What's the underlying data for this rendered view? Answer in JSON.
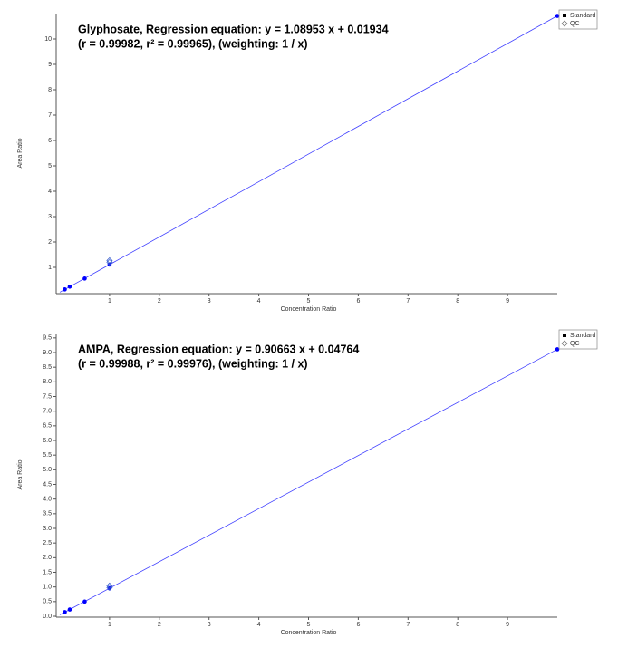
{
  "chart_data": [
    {
      "type": "scatter",
      "title": "Glyphosate, Regression equation: y = 1.08953 x + 0.01934",
      "subtitle": "(r = 0.99982, r² = 0.99965), (weighting: 1 / x)",
      "x_label": "Concentration Ratio",
      "y_label": "Area Ratio",
      "xlim": [
        0,
        10
      ],
      "ylim": [
        0,
        11
      ],
      "xticks": [
        1,
        2,
        3,
        4,
        5,
        6,
        7,
        8,
        9
      ],
      "yticks": [
        1,
        2,
        3,
        4,
        5,
        6,
        7,
        8,
        9,
        10
      ],
      "series": [
        {
          "name": "Standard",
          "color": "#0000ff",
          "x": [
            0.1,
            0.2,
            0.5,
            1,
            10
          ],
          "y": [
            0.13,
            0.24,
            0.56,
            1.11,
            10.91
          ]
        },
        {
          "name": "QC",
          "color": "#3a5fcd",
          "x": [
            1,
            1
          ],
          "y": [
            1.2,
            1.27
          ]
        }
      ],
      "fit": {
        "color": "#4040ff",
        "x": [
          0,
          10
        ],
        "y": [
          0.02,
          10.91
        ]
      }
    },
    {
      "type": "scatter",
      "title": "AMPA, Regression equation: y = 0.90663 x + 0.04764",
      "subtitle": "(r = 0.99988, r² = 0.99976), (weighting: 1 / x)",
      "x_label": "Concentration Ratio",
      "y_label": "Area Ratio",
      "xlim": [
        0,
        10
      ],
      "ylim": [
        0,
        9.65
      ],
      "xticks": [
        1,
        2,
        3,
        4,
        5,
        6,
        7,
        8,
        9
      ],
      "yticks": [
        {
          "value": 0,
          "label": "0.0"
        },
        0.5,
        {
          "value": 1,
          "label": "1.0"
        },
        1.5,
        {
          "value": 2,
          "label": "2.0"
        },
        2.5,
        {
          "value": 3,
          "label": "3.0"
        },
        3.5,
        {
          "value": 4,
          "label": "4.0"
        },
        4.5,
        {
          "value": 5,
          "label": "5.0"
        },
        5.5,
        {
          "value": 6,
          "label": "6.0"
        },
        6.5,
        {
          "value": 7,
          "label": "7.0"
        },
        7.5,
        {
          "value": 8,
          "label": "8.0"
        },
        8.5,
        {
          "value": 9,
          "label": "9.0"
        },
        9.5
      ],
      "series": [
        {
          "name": "Standard",
          "color": "#0000ff",
          "x": [
            0.1,
            0.2,
            0.5,
            1,
            10
          ],
          "y": [
            0.14,
            0.23,
            0.5,
            0.95,
            9.11
          ]
        },
        {
          "name": "QC",
          "color": "#3a5fcd",
          "x": [
            1,
            1
          ],
          "y": [
            0.98,
            1.04
          ]
        }
      ],
      "fit": {
        "color": "#4040ff",
        "x": [
          0,
          10
        ],
        "y": [
          0.05,
          9.11
        ]
      }
    }
  ]
}
